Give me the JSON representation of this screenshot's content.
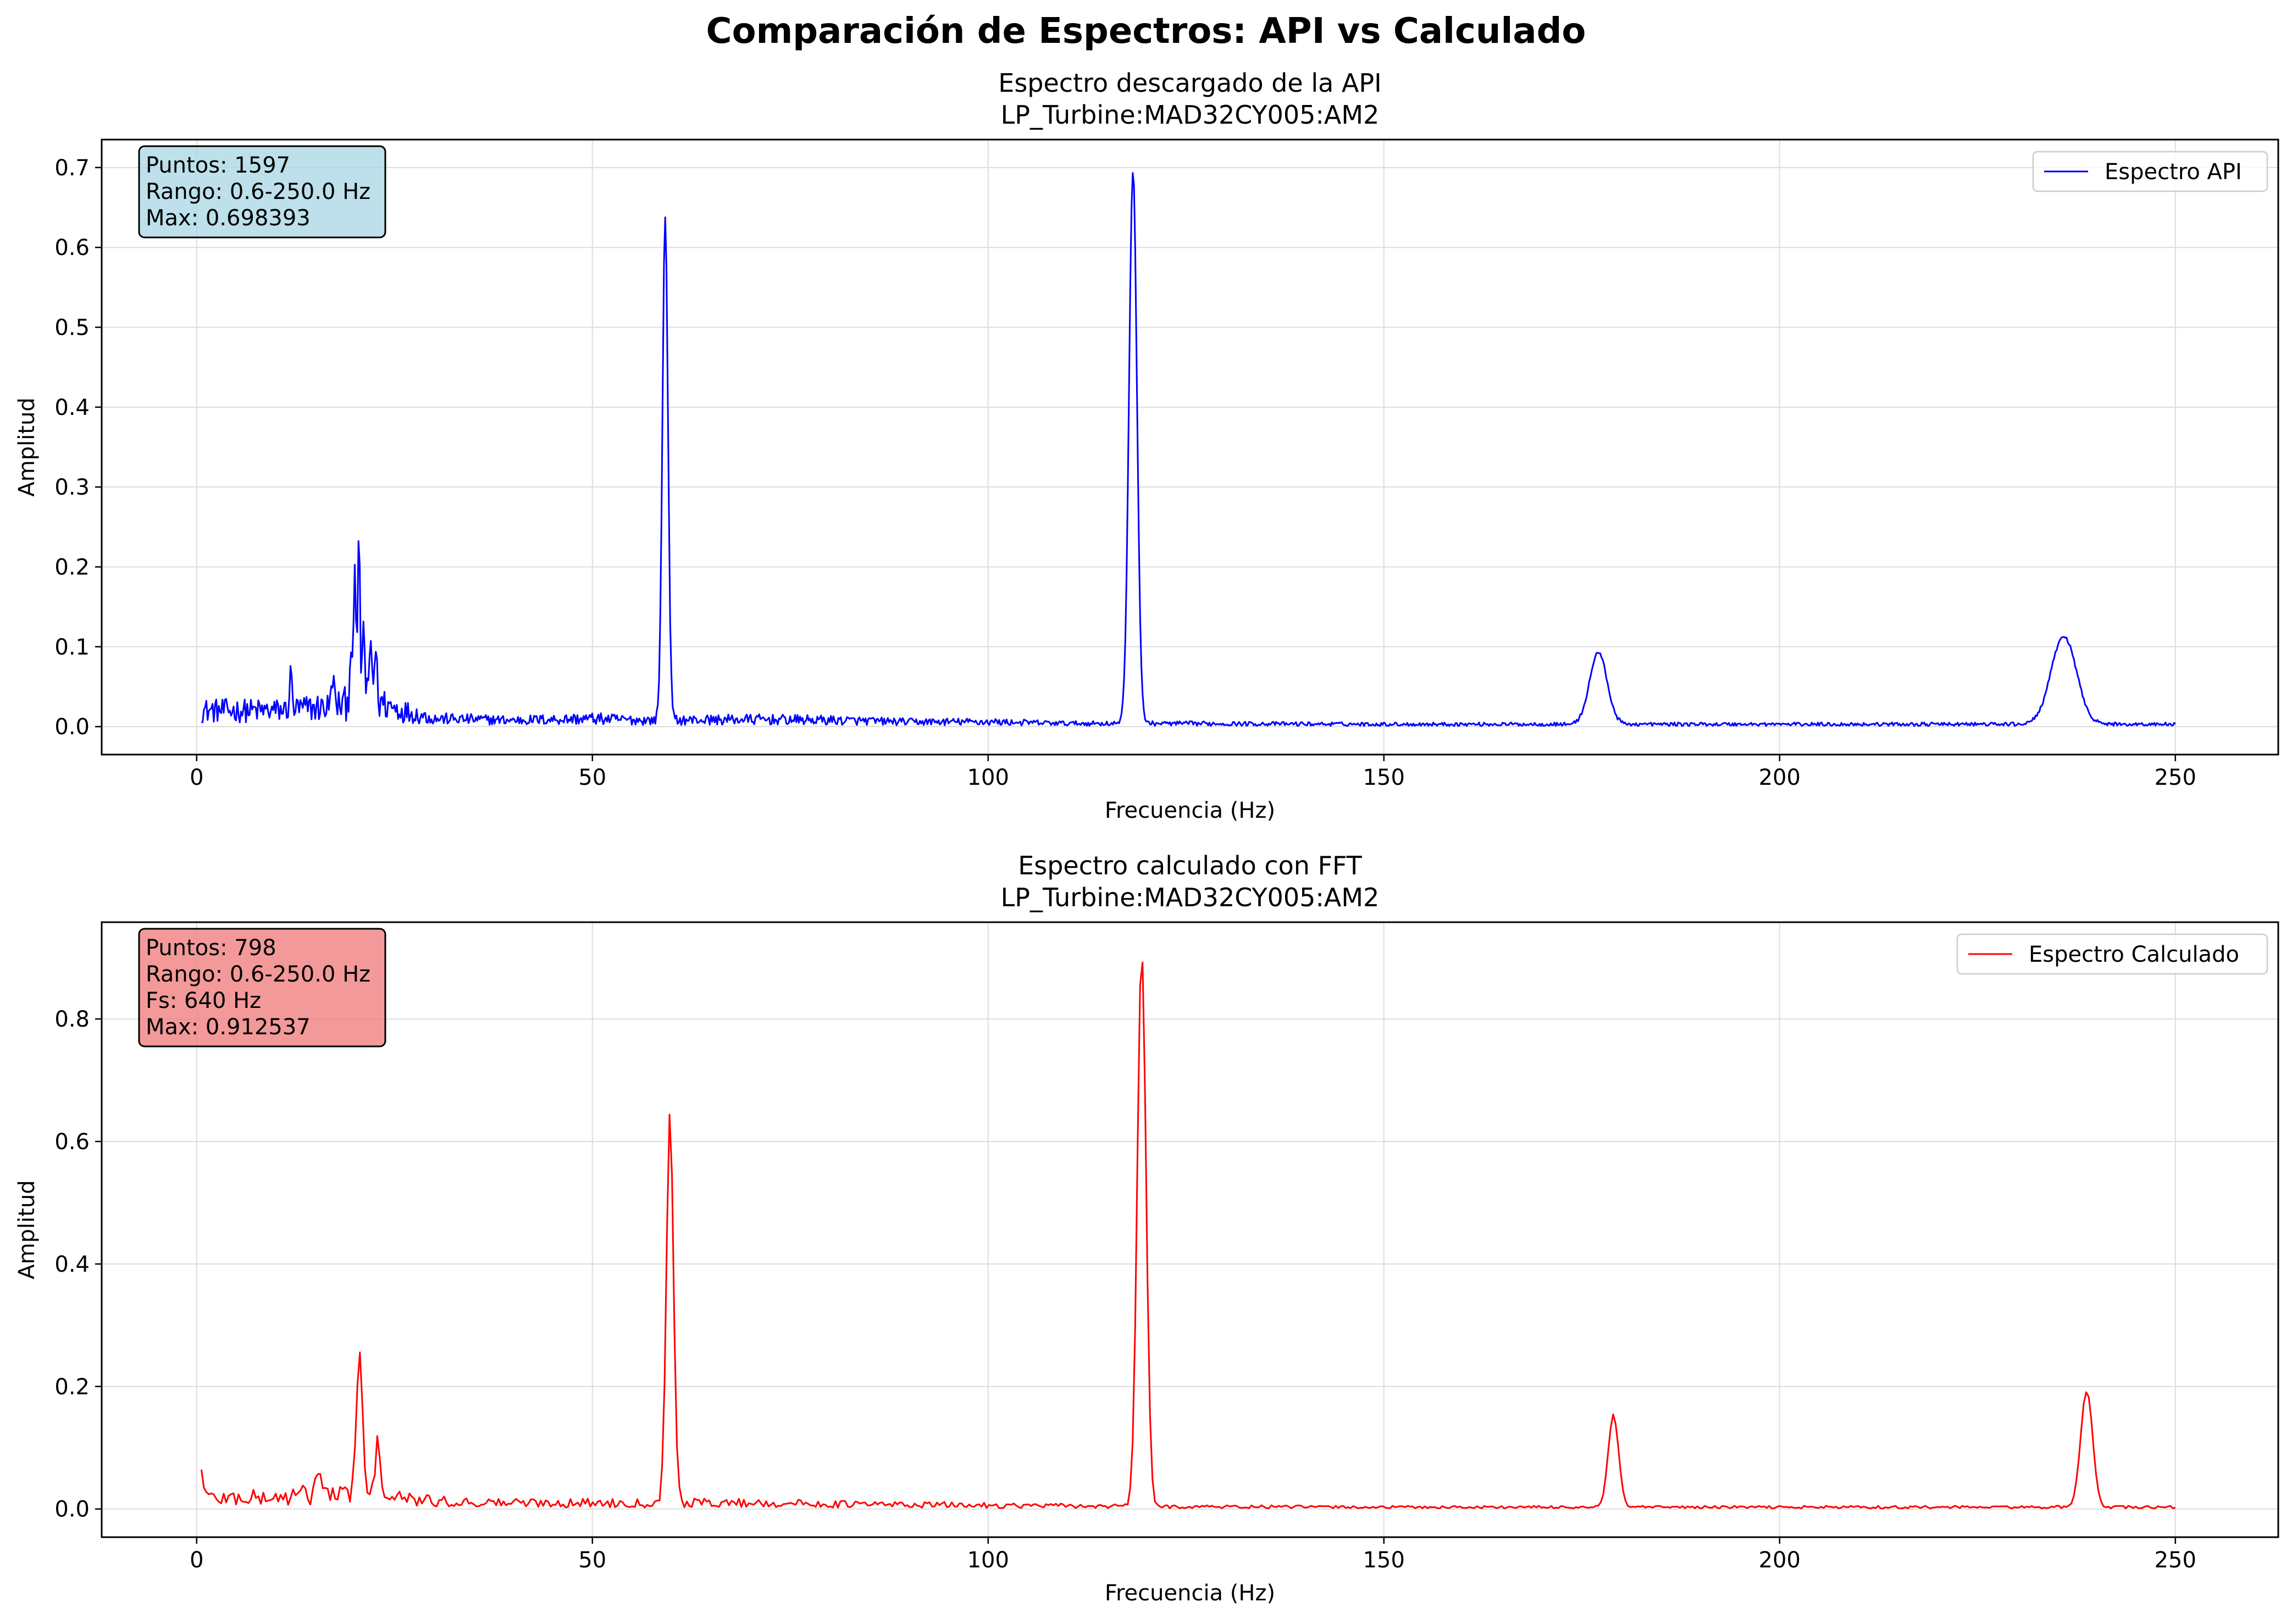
{
  "figure": {
    "suptitle": "Comparación de Espectros: API vs Calculado"
  },
  "chart_data": [
    {
      "type": "line",
      "title": "Espectro descargado de la API",
      "subtitle": "LP_Turbine:MAD32CY005:AM2",
      "xlabel": "Frecuencia (Hz)",
      "ylabel": "Amplitud",
      "xlim": [
        -12,
        263
      ],
      "ylim": [
        -0.035,
        0.735
      ],
      "xticks": [
        0,
        50,
        100,
        150,
        200,
        250
      ],
      "xtick_labels": [
        "0",
        "50",
        "100",
        "150",
        "200",
        "250"
      ],
      "yticks": [
        0.0,
        0.1,
        0.2,
        0.3,
        0.4,
        0.5,
        0.6,
        0.7
      ],
      "ytick_labels": [
        "0.0",
        "0.1",
        "0.2",
        "0.3",
        "0.4",
        "0.5",
        "0.6",
        "0.7"
      ],
      "grid": true,
      "legend_position": "upper right",
      "info_box": [
        "Puntos: 1597",
        "Rango: 0.6-250.0 Hz",
        "Max: 0.698393"
      ],
      "colors": {
        "line": "#0000ff",
        "box": "#add8e6"
      },
      "series": [
        {
          "name": "Espectro API",
          "x_range": [
            0.6,
            250.0
          ],
          "points": 1597,
          "noise_profile": [
            [
              0.6,
              0.02
            ],
            [
              10,
              0.02
            ],
            [
              17,
              0.025
            ],
            [
              22,
              0.035
            ],
            [
              26,
              0.02
            ],
            [
              30,
              0.01
            ],
            [
              40,
              0.008
            ],
            [
              50,
              0.01
            ],
            [
              56,
              0.008
            ],
            [
              60,
              0.008
            ],
            [
              70,
              0.009
            ],
            [
              80,
              0.008
            ],
            [
              90,
              0.006
            ],
            [
              100,
              0.006
            ],
            [
              110,
              0.004
            ],
            [
              120,
              0.004
            ],
            [
              150,
              0.003
            ],
            [
              200,
              0.003
            ],
            [
              250,
              0.003
            ]
          ],
          "peaks": [
            {
              "x": 11.9,
              "height": 0.045,
              "width": 0.15
            },
            {
              "x": 17.2,
              "height": 0.04,
              "width": 0.15
            },
            {
              "x": 19.5,
              "height": 0.08,
              "width": 0.15
            },
            {
              "x": 20.0,
              "height": 0.15,
              "width": 0.15
            },
            {
              "x": 20.5,
              "height": 0.19,
              "width": 0.15
            },
            {
              "x": 21.1,
              "height": 0.095,
              "width": 0.15
            },
            {
              "x": 22.0,
              "height": 0.075,
              "width": 0.15
            },
            {
              "x": 22.6,
              "height": 0.07,
              "width": 0.15
            },
            {
              "x": 59.2,
              "height": 0.63,
              "width": 0.35
            },
            {
              "x": 118.3,
              "height": 0.693,
              "width": 0.5
            },
            {
              "x": 177.1,
              "height": 0.09,
              "width": 1.1
            },
            {
              "x": 235.9,
              "height": 0.11,
              "width": 1.6
            }
          ],
          "max": 0.698393
        }
      ]
    },
    {
      "type": "line",
      "title": "Espectro calculado con FFT",
      "subtitle": "LP_Turbine:MAD32CY005:AM2",
      "xlabel": "Frecuencia (Hz)",
      "ylabel": "Amplitud",
      "xlim": [
        -12,
        263
      ],
      "ylim": [
        -0.046,
        0.958
      ],
      "xticks": [
        0,
        50,
        100,
        150,
        200,
        250
      ],
      "xtick_labels": [
        "0",
        "50",
        "100",
        "150",
        "200",
        "250"
      ],
      "yticks": [
        0.0,
        0.2,
        0.4,
        0.6,
        0.8
      ],
      "ytick_labels": [
        "0.0",
        "0.2",
        "0.4",
        "0.6",
        "0.8"
      ],
      "grid": true,
      "legend_position": "upper right",
      "info_box": [
        "Puntos: 798",
        "Rango: 0.6-250.0 Hz",
        "Fs: 640 Hz",
        "Max: 0.912537"
      ],
      "colors": {
        "line": "#ff0000",
        "box": "#f08080"
      },
      "series": [
        {
          "name": "Espectro Calculado",
          "x_range": [
            0.6,
            250.0
          ],
          "points": 798,
          "noise_profile": [
            [
              0.6,
              0.018
            ],
            [
              10,
              0.018
            ],
            [
              15,
              0.025
            ],
            [
              25,
              0.018
            ],
            [
              30,
              0.012
            ],
            [
              40,
              0.01
            ],
            [
              50,
              0.01
            ],
            [
              56,
              0.01
            ],
            [
              70,
              0.01
            ],
            [
              80,
              0.008
            ],
            [
              100,
              0.006
            ],
            [
              110,
              0.005
            ],
            [
              120,
              0.004
            ],
            [
              150,
              0.003
            ],
            [
              200,
              0.003
            ],
            [
              250,
              0.003
            ]
          ],
          "peaks": [
            {
              "x": 0.6,
              "height": 0.045,
              "width": 0.3
            },
            {
              "x": 15.4,
              "height": 0.045,
              "width": 0.3
            },
            {
              "x": 20.0,
              "height": 0.03,
              "width": 0.3
            },
            {
              "x": 20.6,
              "height": 0.225,
              "width": 0.35
            },
            {
              "x": 22.9,
              "height": 0.09,
              "width": 0.35
            },
            {
              "x": 59.8,
              "height": 0.635,
              "width": 0.45
            },
            {
              "x": 119.4,
              "height": 0.908,
              "width": 0.55
            },
            {
              "x": 179.0,
              "height": 0.15,
              "width": 0.65
            },
            {
              "x": 238.8,
              "height": 0.19,
              "width": 0.75
            }
          ],
          "max": 0.912537
        }
      ]
    }
  ]
}
